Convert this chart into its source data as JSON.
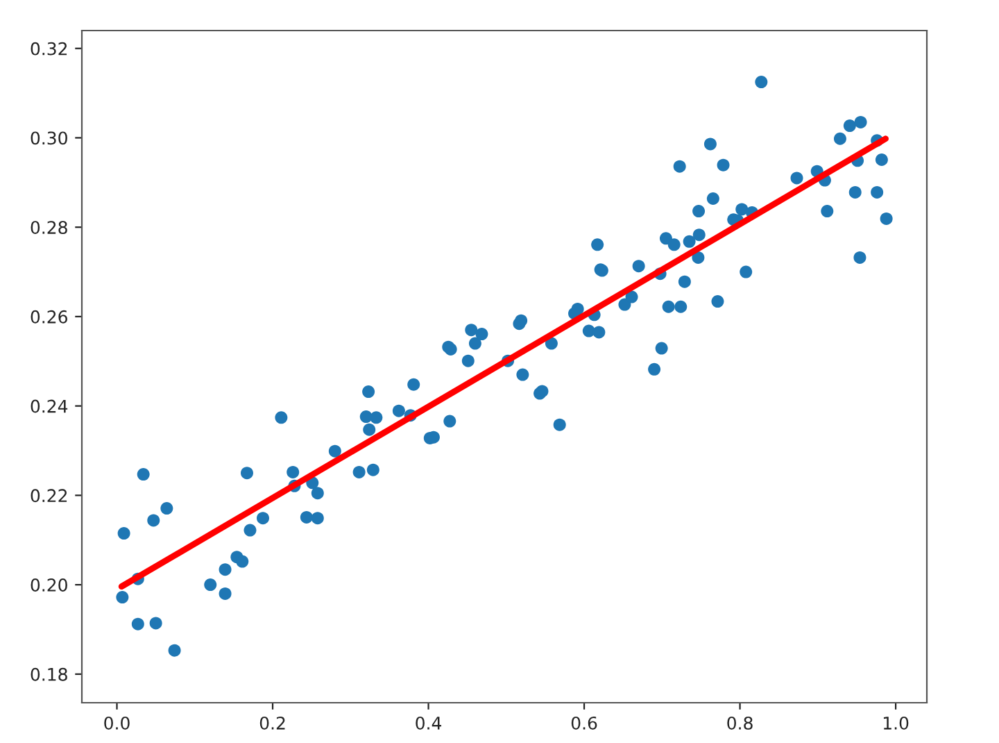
{
  "chart_data": {
    "type": "scatter",
    "xlim": [
      -0.045,
      1.04
    ],
    "ylim": [
      0.1736,
      0.324
    ],
    "xticks": [
      {
        "value": 0,
        "label": "0.0"
      },
      0.2,
      0.4,
      0.6,
      0.8,
      {
        "value": 1,
        "label": "1.0"
      }
    ],
    "yticks": [
      0.18,
      {
        "value": 0.2,
        "label": "0.20"
      },
      0.22,
      0.24,
      0.26,
      0.28,
      {
        "value": 0.3,
        "label": "0.30"
      },
      0.32
    ],
    "grid": false,
    "series": [
      {
        "marker": "circle",
        "color": "#1f77b4",
        "x": [
          0.007,
          0.009,
          0.027,
          0.027,
          0.034,
          0.047,
          0.05,
          0.064,
          0.074,
          0.12,
          0.139,
          0.139,
          0.154,
          0.161,
          0.167,
          0.171,
          0.1875,
          0.211,
          0.226,
          0.228,
          0.2435,
          0.251,
          0.2577,
          0.2577,
          0.28,
          0.311,
          0.32,
          0.323,
          0.324,
          0.329,
          0.333,
          0.362,
          0.377,
          0.381,
          0.402,
          0.4066,
          0.4274,
          0.4256,
          0.4286,
          0.451,
          0.455,
          0.46,
          0.4685,
          0.502,
          0.521,
          0.5166,
          0.519,
          0.543,
          0.546,
          0.558,
          0.5685,
          0.5875,
          0.5916,
          0.606,
          0.613,
          0.619,
          0.617,
          0.621,
          0.623,
          0.652,
          0.661,
          0.67,
          0.69,
          0.6994,
          0.6976,
          0.705,
          0.7083,
          0.7155,
          0.724,
          0.7226,
          0.729,
          0.735,
          0.7464,
          0.7476,
          0.747,
          0.762,
          0.7655,
          0.7714,
          0.7786,
          0.7917,
          0.797,
          0.8024,
          0.8077,
          0.8155,
          0.8274,
          0.873,
          0.899,
          0.909,
          0.912,
          0.9286,
          0.941,
          0.955,
          0.951,
          0.948,
          0.954,
          0.976,
          0.982,
          0.976,
          0.988
        ],
        "values": [
          0.1972,
          0.2115,
          0.2013,
          0.1912,
          0.2247,
          0.2144,
          0.1914,
          0.2171,
          0.1853,
          0.2,
          0.2034,
          0.198,
          0.2062,
          0.2052,
          0.225,
          0.2122,
          0.2149,
          0.2374,
          0.2252,
          0.2221,
          0.2151,
          0.2228,
          0.2205,
          0.2149,
          0.2299,
          0.2252,
          0.2376,
          0.2432,
          0.2347,
          0.2257,
          0.2374,
          0.2389,
          0.2379,
          0.2448,
          0.2328,
          0.233,
          0.2366,
          0.2532,
          0.2527,
          0.2501,
          0.257,
          0.254,
          0.2561,
          0.2501,
          0.247,
          0.2584,
          0.2591,
          0.2428,
          0.2433,
          0.254,
          0.2358,
          0.2607,
          0.2617,
          0.2568,
          0.2604,
          0.2565,
          0.2761,
          0.2705,
          0.2703,
          0.2627,
          0.2644,
          0.2713,
          0.2482,
          0.2529,
          0.2696,
          0.2775,
          0.2622,
          0.2761,
          0.2622,
          0.2936,
          0.2678,
          0.2768,
          0.2732,
          0.2783,
          0.2836,
          0.2986,
          0.2864,
          0.2634,
          0.2939,
          0.2817,
          0.2815,
          0.284,
          0.27,
          0.2833,
          0.3125,
          0.291,
          0.2925,
          0.2905,
          0.2836,
          0.2998,
          0.3027,
          0.3035,
          0.2949,
          0.2878,
          0.2732,
          0.2994,
          0.2951,
          0.2878,
          0.2819
        ]
      },
      {
        "type": "line",
        "color": "#ff0000",
        "x": [
          0.006,
          0.987
        ],
        "values": [
          0.1996,
          0.2998
        ]
      }
    ]
  }
}
